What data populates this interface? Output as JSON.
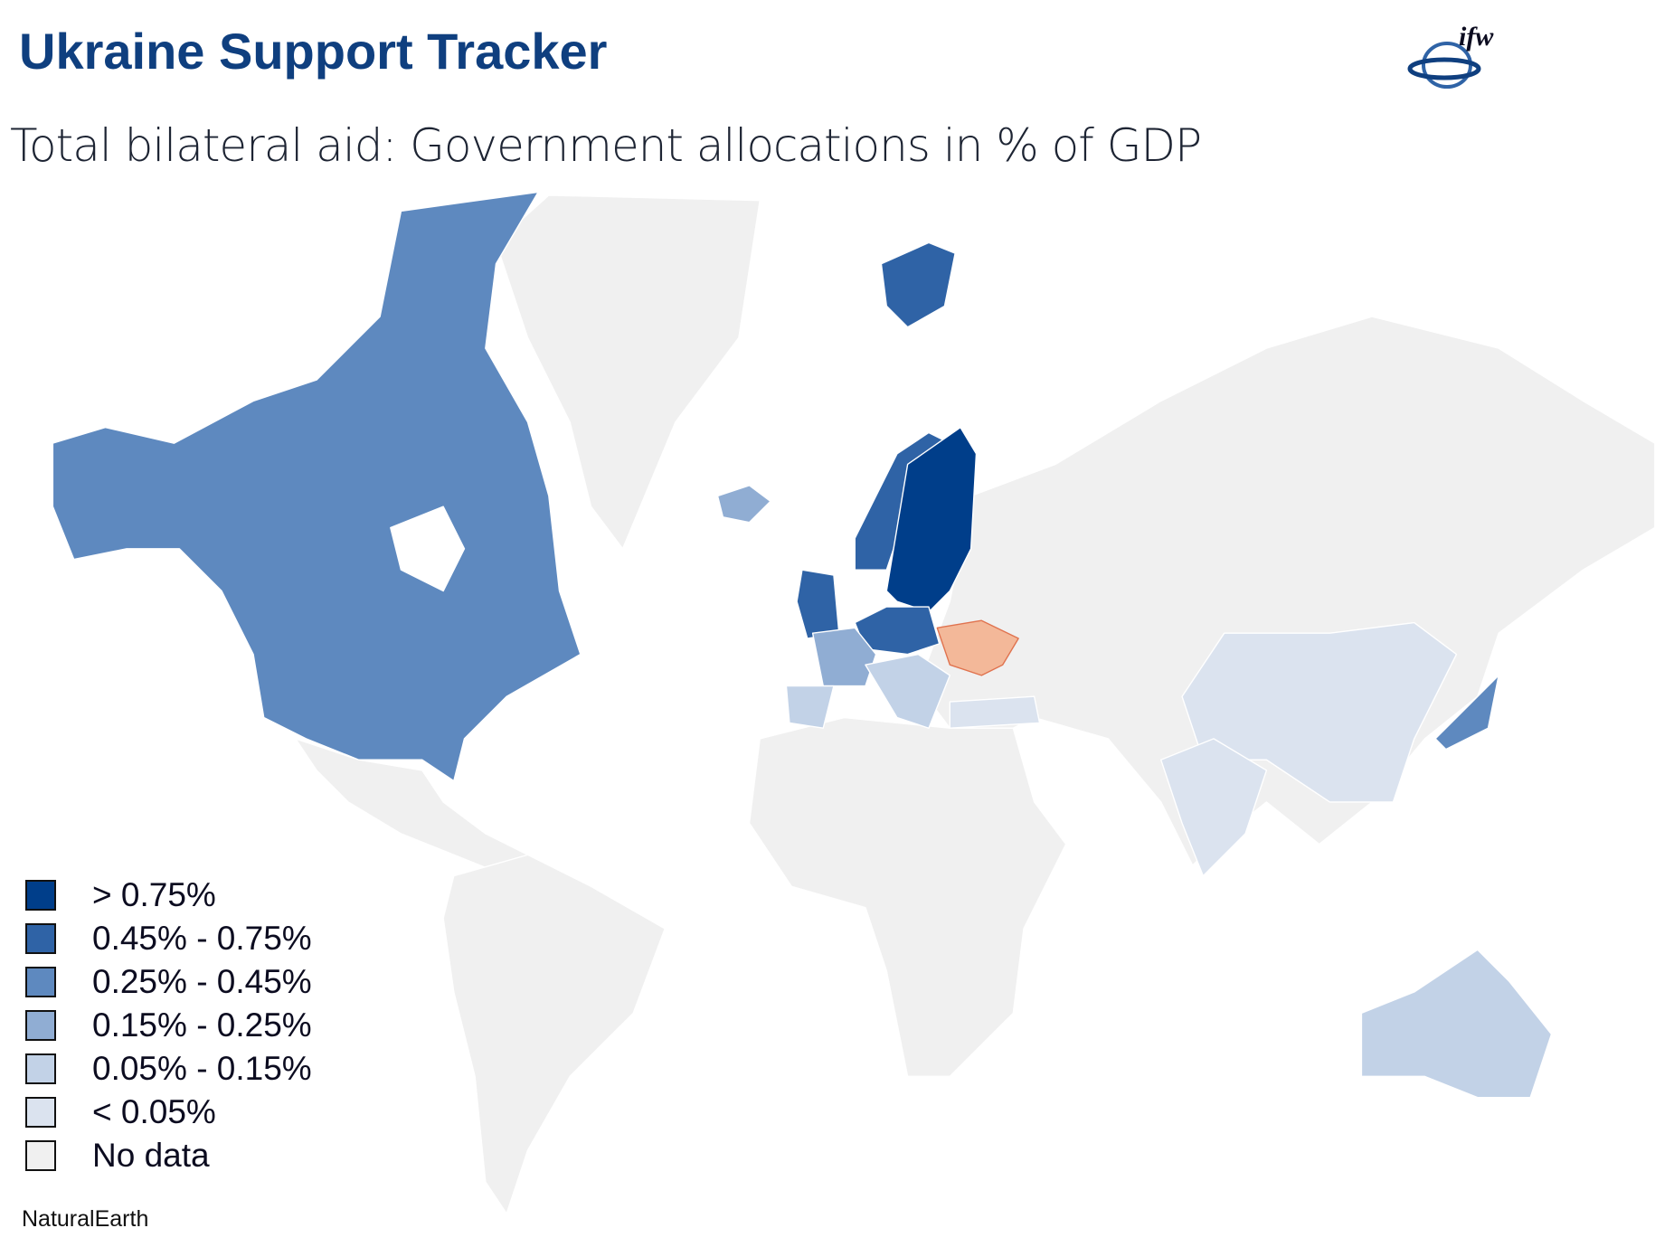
{
  "header": {
    "title": "Ukraine Support Tracker",
    "logo": "ifw"
  },
  "subtitle": "Total bilateral aid: Government allocations in % of GDP",
  "legend": {
    "items": [
      {
        "label": "> 0.75%",
        "color": "#003e8a"
      },
      {
        "label": "0.45% - 0.75%",
        "color": "#2f63a6"
      },
      {
        "label": "0.25% - 0.45%",
        "color": "#5e89bf"
      },
      {
        "label": "0.15% - 0.25%",
        "color": "#90add3"
      },
      {
        "label": "0.05% - 0.15%",
        "color": "#c2d2e7"
      },
      {
        "label": "< 0.05%",
        "color": "#dbe3ef"
      },
      {
        "label": "No data",
        "color": "#f0f0f0"
      }
    ]
  },
  "source": "NaturalEarth"
}
